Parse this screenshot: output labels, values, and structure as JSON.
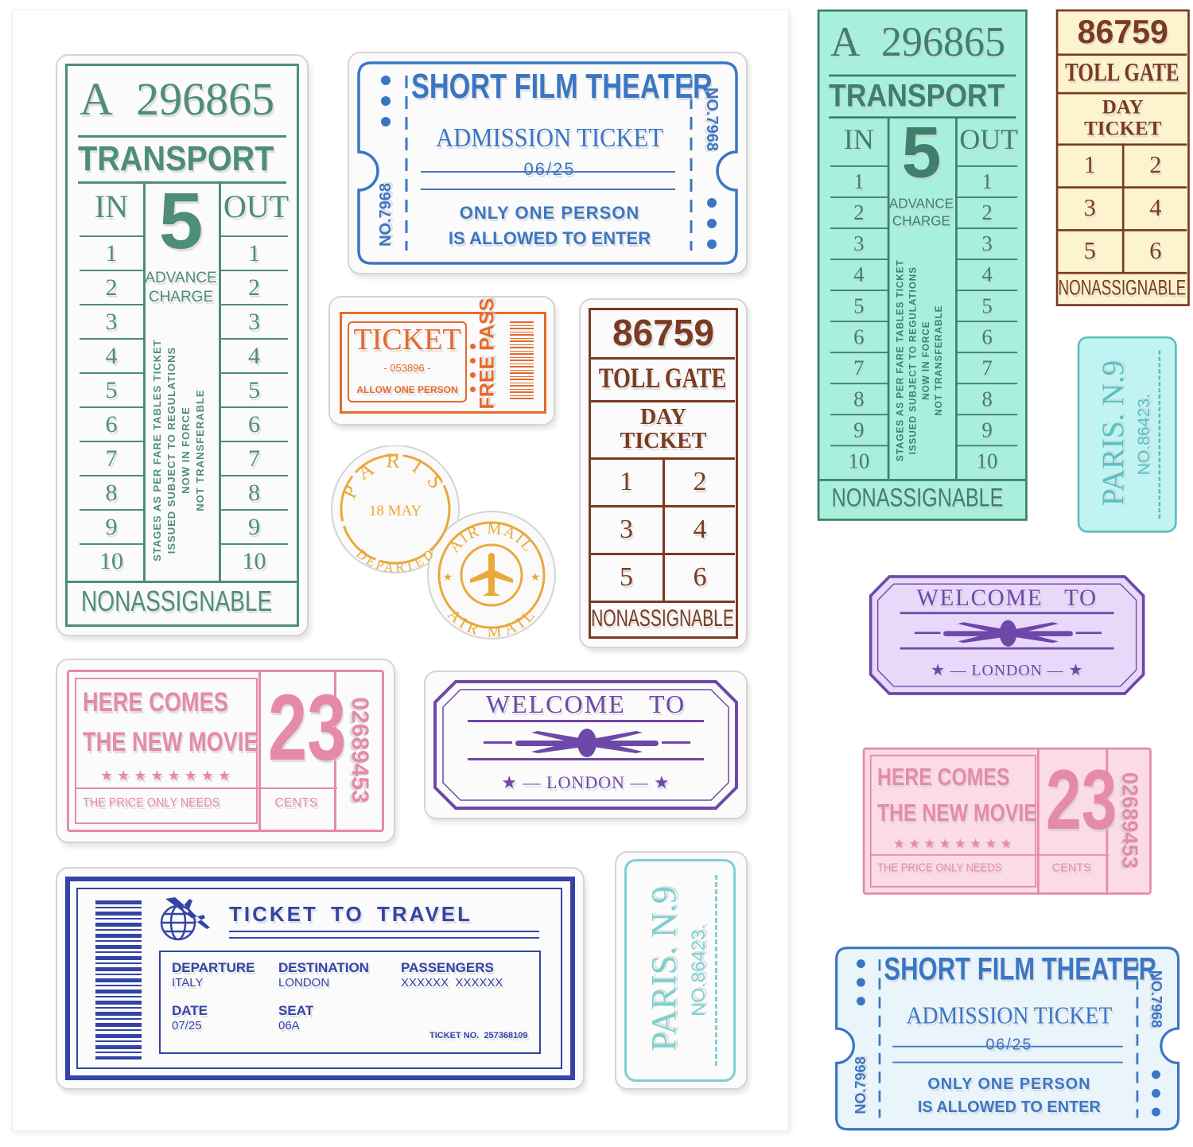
{
  "colors": {
    "transport": "#4e8d79",
    "transport_fill": "#a8f0dc",
    "film": "#3b76c4",
    "film_fill": "#eaf4fb",
    "free_pass": "#e8692c",
    "postmark": "#e9a93b",
    "toll": "#7a3b22",
    "toll_fill": "#fdf4cf",
    "movie": "#e68aa9",
    "movie_fill": "#fbdbe6",
    "welcome": "#6e48a8",
    "welcome_fill": "#e8d8fa",
    "travel": "#3444a6",
    "paris": "#7fd0d0",
    "paris_fill": "#c2f3f3"
  },
  "transport": {
    "serial": "A 296865",
    "title": "TRANSPORT",
    "in_label": "IN",
    "out_label": "OUT",
    "zone": "5",
    "charge_line1": "ADVANCE",
    "charge_line2": "CHARGE",
    "rows": [
      "1",
      "2",
      "3",
      "4",
      "5",
      "6",
      "7",
      "8",
      "9",
      "10"
    ],
    "terms": [
      "STAGES AS PER FARE TABLES TICKET",
      "ISSUED SUBJECT TO REGULATIONS",
      "NOW IN FORCE",
      "NOT TRANSFERABLE"
    ],
    "footer": "NONASSIGNABLE"
  },
  "film": {
    "title": "SHORT FILM THEATER",
    "subtitle": "ADMISSION TICKET",
    "date": "06/25",
    "line1": "ONLY ONE PERSON",
    "line2": "IS ALLOWED TO ENTER",
    "number": "NO.7968"
  },
  "free_pass": {
    "title": "TICKET",
    "number": "- 053896 -",
    "note": "ALLOW ONE PERSON",
    "side": "FREE PASS"
  },
  "postmarks": {
    "paris": {
      "city": "PARIS",
      "date": "18 MAY",
      "status": "DEPARTED"
    },
    "airmail": {
      "top": "AIR MAIL",
      "bottom": "AIR MAIL",
      "icon": "airplane-icon"
    }
  },
  "toll": {
    "number": "86759",
    "title": "TOLL GATE",
    "subtitle_line1": "DAY",
    "subtitle_line2": "TICKET",
    "cells": [
      "1",
      "2",
      "3",
      "4",
      "5",
      "6"
    ],
    "footer": "NONASSIGNABLE"
  },
  "movie": {
    "line1": "HERE COMES",
    "line2": "THE NEW MOVIE",
    "stars": "★★★★★★★★",
    "price_note": "THE PRICE ONLY NEEDS",
    "price": "23",
    "unit": "CENTS",
    "serial": "02689453"
  },
  "welcome": {
    "title": "WELCOME   TO",
    "city": "LONDON",
    "icon": "airplane-icon"
  },
  "travel": {
    "title": "TICKET TO TRAVEL",
    "icon": "globe-airplane-icon",
    "fields": [
      {
        "label": "DEPARTURE",
        "value": "ITALY"
      },
      {
        "label": "DESTINATION",
        "value": "LONDON"
      },
      {
        "label": "PASSENGERS",
        "value": "XXXXXX  XXXXXX"
      },
      {
        "label": "DATE",
        "value": "07/25"
      },
      {
        "label": "SEAT",
        "value": "06A"
      }
    ],
    "ticket_no": "TICKET NO.  257368109"
  },
  "paris_ticket": {
    "city": "PARIS. N.9",
    "number": "NO.86423."
  }
}
